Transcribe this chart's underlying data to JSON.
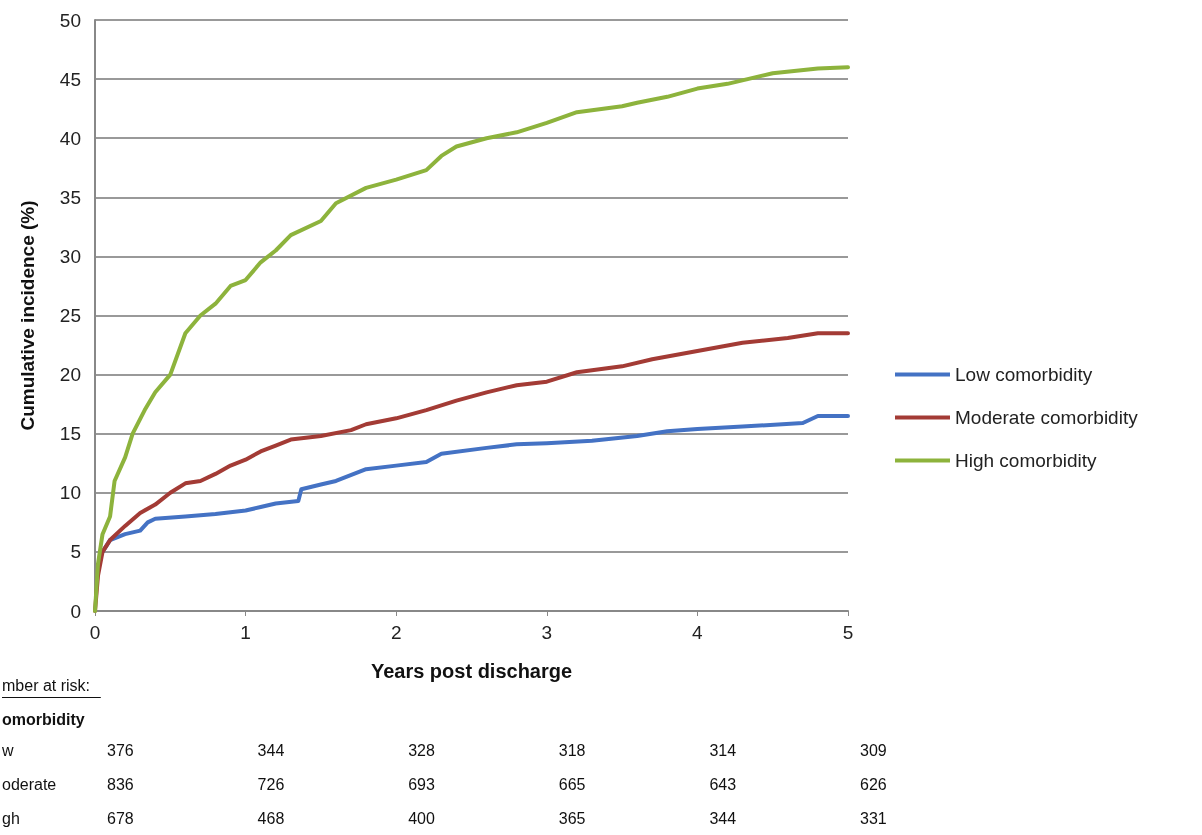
{
  "chart_data": {
    "type": "line",
    "xlabel": "Years post discharge",
    "ylabel": "Cumulative incidence (%)",
    "xlim": [
      0,
      5
    ],
    "xticks": [
      0,
      1,
      2,
      3,
      4,
      5
    ],
    "ylim": [
      0,
      50
    ],
    "yticks": [
      0,
      5,
      10,
      15,
      20,
      25,
      30,
      35,
      40,
      45,
      50
    ],
    "grid": "y",
    "legend": "right",
    "marker": "none",
    "line_style": "solid",
    "series": [
      {
        "name": "Low comorbidity",
        "color": "#4472c4",
        "x": [
          0.05,
          0.1,
          0.2,
          0.3,
          0.35,
          0.4,
          0.6,
          0.8,
          1.0,
          1.1,
          1.2,
          1.35,
          1.37,
          1.5,
          1.6,
          1.8,
          2.0,
          2.2,
          2.3,
          2.6,
          2.8,
          3.0,
          3.3,
          3.6,
          3.8,
          4.0,
          4.3,
          4.7,
          4.8,
          5
        ],
        "values": [
          5,
          6,
          6.5,
          6.8,
          7.5,
          7.8,
          8,
          8.2,
          8.5,
          8.8,
          9.1,
          9.3,
          10.3,
          10.7,
          11,
          12,
          12.3,
          12.6,
          13.3,
          13.8,
          14.1,
          14.2,
          14.4,
          14.8,
          15.2,
          15.4,
          15.6,
          15.9,
          16.5,
          16.5
        ]
      },
      {
        "name": "Moderate comorbidity",
        "color": "#a33b35",
        "x": [
          0,
          0.02,
          0.05,
          0.1,
          0.2,
          0.3,
          0.4,
          0.5,
          0.6,
          0.7,
          0.8,
          0.9,
          1.0,
          1.1,
          1.2,
          1.3,
          1.5,
          1.7,
          1.8,
          2.0,
          2.2,
          2.4,
          2.6,
          2.8,
          3.0,
          3.2,
          3.5,
          3.7,
          4.0,
          4.3,
          4.6,
          4.8,
          5
        ],
        "values": [
          0,
          3,
          5,
          6,
          7.2,
          8.3,
          9,
          10,
          10.8,
          11,
          11.6,
          12.3,
          12.8,
          13.5,
          14,
          14.5,
          14.8,
          15.3,
          15.8,
          16.3,
          17,
          17.8,
          18.5,
          19.1,
          19.4,
          20.2,
          20.7,
          21.3,
          22,
          22.7,
          23.1,
          23.5,
          23.5
        ]
      },
      {
        "name": "High comorbidity",
        "color": "#8db33c",
        "x": [
          0,
          0.02,
          0.05,
          0.1,
          0.13,
          0.2,
          0.25,
          0.33,
          0.4,
          0.5,
          0.6,
          0.7,
          0.8,
          0.9,
          1.0,
          1.1,
          1.2,
          1.3,
          1.5,
          1.6,
          1.8,
          2.0,
          2.2,
          2.3,
          2.4,
          2.6,
          2.8,
          3.0,
          3.2,
          3.5,
          3.6,
          3.8,
          4.0,
          4.2,
          4.5,
          4.8,
          5
        ],
        "values": [
          0,
          4,
          6.5,
          8,
          11,
          13,
          15,
          17,
          18.5,
          20,
          23.5,
          25,
          26,
          27.5,
          28,
          29.5,
          30.5,
          31.8,
          33,
          34.5,
          35.8,
          36.5,
          37.3,
          38.5,
          39.3,
          40,
          40.5,
          41.3,
          42.2,
          42.7,
          43,
          43.5,
          44.2,
          44.6,
          45.5,
          45.9,
          46
        ]
      }
    ],
    "annotations": [
      "mber at risk:",
      "omorbidity",
      "w",
      "376",
      "344",
      "328",
      "318",
      "314",
      "309",
      "oderate",
      "836",
      "726",
      "693",
      "665",
      "643",
      "626",
      "gh",
      "678",
      "468",
      "400",
      "365",
      "344",
      "331"
    ]
  }
}
